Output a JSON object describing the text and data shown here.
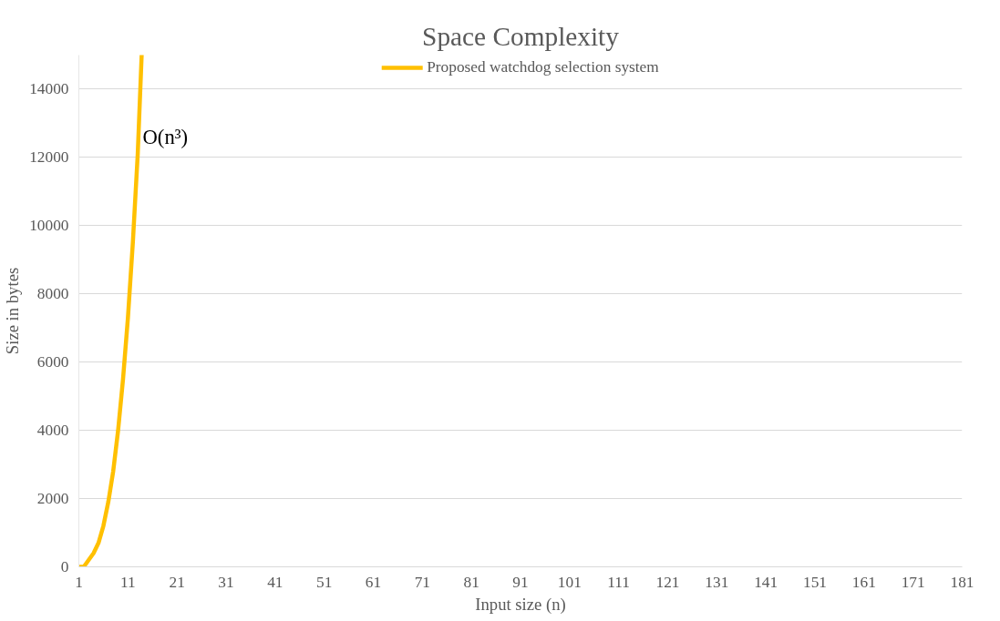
{
  "chart_data": {
    "type": "line",
    "title": "Space Complexity",
    "xlabel": "Input size (n)",
    "ylabel": "Size in bytes",
    "x": [
      1,
      2,
      3,
      4,
      5,
      6,
      7,
      8,
      9,
      10,
      11,
      12,
      13,
      13.8
    ],
    "series": [
      {
        "name": "Proposed watchdog selection system",
        "color": "#ffc000",
        "values": [
          0,
          0,
          200,
          400,
          700,
          1200,
          1900,
          2800,
          4000,
          5500,
          7300,
          9500,
          12100,
          15000
        ]
      }
    ],
    "xlim": [
      1,
      181
    ],
    "xticks": [
      1,
      11,
      21,
      31,
      41,
      51,
      61,
      71,
      81,
      91,
      101,
      111,
      121,
      131,
      141,
      151,
      161,
      171,
      181
    ],
    "ylim": [
      0,
      15000
    ],
    "yticks": [
      0,
      2000,
      4000,
      6000,
      8000,
      10000,
      12000,
      14000
    ],
    "grid": "y",
    "legend": "top",
    "marker": "none",
    "line_style": "solid",
    "annotations": [
      {
        "text": "O(n³)",
        "x": 14,
        "y": 12600
      }
    ]
  }
}
